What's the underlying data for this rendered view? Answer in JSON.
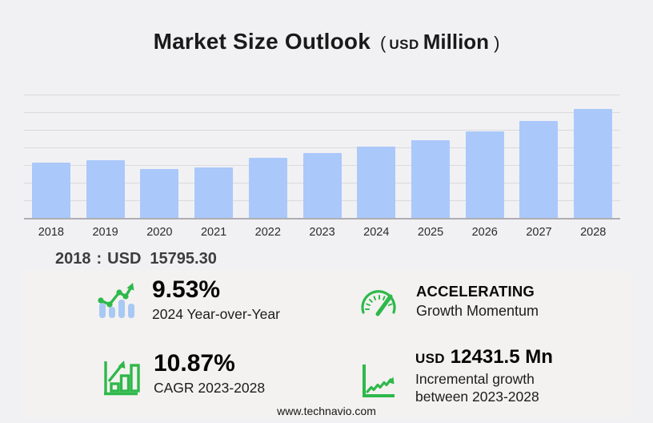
{
  "title": {
    "main": "Market Size Outlook",
    "paren_open": "(",
    "currency": "USD",
    "unit": "Million",
    "paren_close": ")"
  },
  "chart_data": {
    "type": "bar",
    "title": "Market Size Outlook (USD Million)",
    "categories": [
      "2018",
      "2019",
      "2020",
      "2021",
      "2022",
      "2023",
      "2024",
      "2025",
      "2026",
      "2027",
      "2028"
    ],
    "values": [
      15795.3,
      16480,
      13820,
      14430,
      17000,
      18398.3,
      20151,
      22160,
      24500,
      27550,
      30829.8
    ],
    "ylim": [
      0,
      35000
    ],
    "gridline_step": 5000,
    "grid": true,
    "y_axis_labels_visible": false,
    "legend": "none",
    "bar_color": "#aac8fa",
    "xlabel": "",
    "ylabel": ""
  },
  "annotation": {
    "year": "2018",
    "separator": ":",
    "currency": "USD",
    "amount": "15795.30"
  },
  "stats": {
    "yoy": {
      "icon": "bar-chart-trend-icon",
      "value": "9.53%",
      "label": "2024 Year-over-Year"
    },
    "momentum": {
      "icon": "speedometer-icon",
      "title": "ACCELERATING",
      "label": "Growth Momentum"
    },
    "cagr": {
      "icon": "bar-growth-arrow-icon",
      "value": "10.87%",
      "label": "CAGR 2023-2028"
    },
    "incremental": {
      "icon": "line-growth-icon",
      "currency": "USD",
      "value": "12431.5 Mn",
      "label_line1": "Incremental growth",
      "label_line2": "between 2023-2028"
    }
  },
  "footer": {
    "url": "www.technavio.com"
  },
  "colors": {
    "accent_green": "#2fb84b",
    "bar_blue": "#aac8fa",
    "icon_bar_blue": "#a9c9f5",
    "background": "#f1f1f4",
    "panel": "#f3f2f0",
    "gridline": "#dadadd",
    "axis": "#aeaeb3",
    "title_text": "#1a1a1a",
    "annotation_text": "#3d3d3d"
  }
}
